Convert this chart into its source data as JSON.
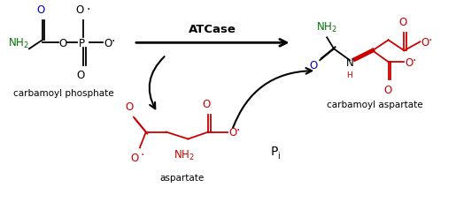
{
  "bg_color": "#ffffff",
  "atcase_label": "ATCase",
  "pi_label": "P",
  "pi_sub": "i",
  "cp_label": "carbamoyl phosphate",
  "asp_label": "aspartate",
  "ca_label": "carbamoyl aspartate",
  "black": "#000000",
  "blue": "#0000cc",
  "green": "#007700",
  "red": "#cc0000"
}
